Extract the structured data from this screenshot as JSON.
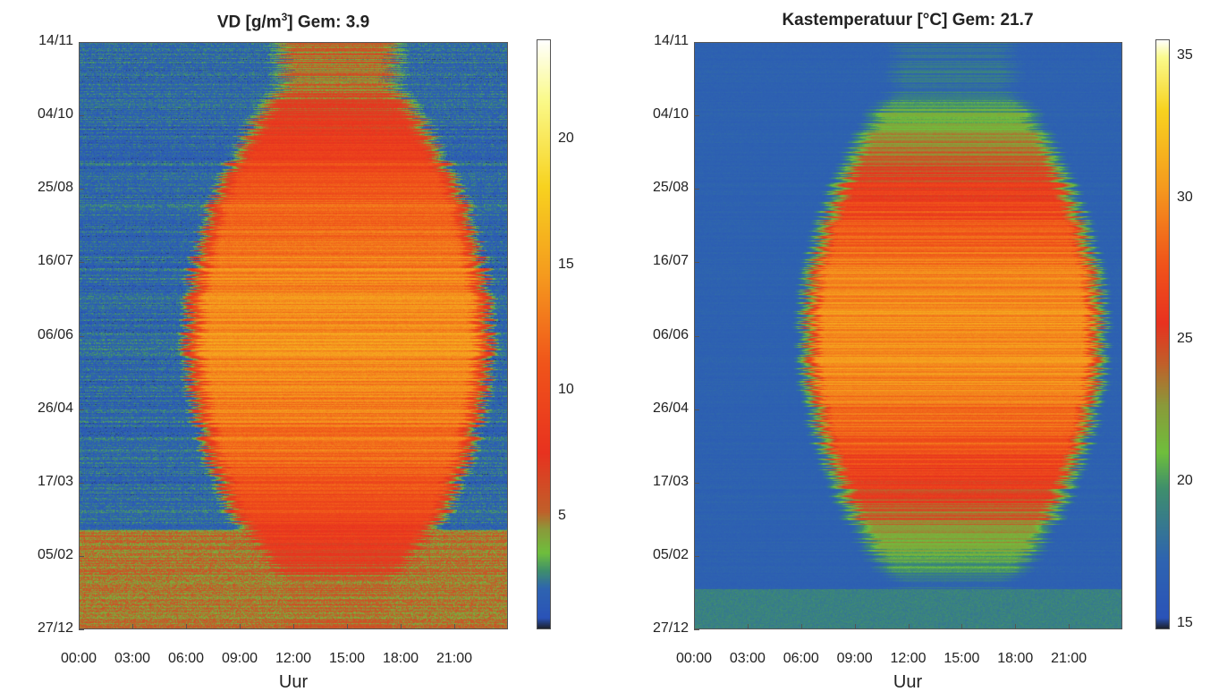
{
  "chart_data": [
    {
      "type": "heatmap",
      "title_prefix": "VD [g/m",
      "title_sup": "3",
      "title_suffix": "] Gem: 3.9",
      "xlabel": "Uur",
      "x_ticks": [
        "00:00",
        "03:00",
        "06:00",
        "09:00",
        "12:00",
        "15:00",
        "18:00",
        "21:00"
      ],
      "y_ticks": [
        "14/11",
        "04/10",
        "25/08",
        "16/07",
        "06/06",
        "26/04",
        "17/03",
        "05/02",
        "27/12"
      ],
      "colorbar_ticks": [
        "5",
        "10",
        "15",
        "20"
      ],
      "colorbar_values": [
        5,
        10,
        15,
        20
      ],
      "clim": [
        0.5,
        24
      ],
      "x_range_hours": [
        0,
        24
      ],
      "y_range": [
        "27/12",
        "14/11"
      ],
      "colormap": [
        "#1b1b1b",
        "#2a53b8",
        "#2e64b0",
        "#3f8f6c",
        "#6fbf3c",
        "#8a9a3a",
        "#c0602a",
        "#e8321f",
        "#f0541a",
        "#f59a1e",
        "#f7d21f",
        "#fafa8c",
        "#ffffff"
      ],
      "colormap_breaks": [
        0,
        0.02,
        0.07,
        0.1,
        0.13,
        0.17,
        0.2,
        0.3,
        0.45,
        0.6,
        0.75,
        0.9,
        1.0
      ],
      "description_values": {
        "night_typical": 2.0,
        "day_summer_peak": 14.0,
        "winter_band": 5.0
      }
    },
    {
      "type": "heatmap",
      "title_prefix": "Kastemperatuur [°C] Gem: 21.7",
      "title_sup": "",
      "title_suffix": "",
      "xlabel": "Uur",
      "x_ticks": [
        "00:00",
        "03:00",
        "06:00",
        "09:00",
        "12:00",
        "15:00",
        "18:00",
        "21:00"
      ],
      "y_ticks": [
        "14/11",
        "04/10",
        "25/08",
        "16/07",
        "06/06",
        "26/04",
        "17/03",
        "05/02",
        "27/12"
      ],
      "colorbar_ticks": [
        "15",
        "20",
        "25",
        "30",
        "35"
      ],
      "colorbar_values": [
        15,
        20,
        25,
        30,
        35
      ],
      "clim": [
        14.8,
        35.6
      ],
      "x_range_hours": [
        0,
        24
      ],
      "y_range": [
        "27/12",
        "14/11"
      ],
      "colormap": [
        "#1b1b1b",
        "#2a53b8",
        "#2e64b0",
        "#3f8f6c",
        "#6fbf3c",
        "#8a9a3a",
        "#c0602a",
        "#e8321f",
        "#f0541a",
        "#f59a1e",
        "#f7d21f",
        "#fafa8c",
        "#ffffff"
      ],
      "colormap_breaks": [
        0,
        0.02,
        0.12,
        0.24,
        0.3,
        0.38,
        0.45,
        0.52,
        0.62,
        0.75,
        0.88,
        0.97,
        1.0
      ],
      "description_values": {
        "night_typical": 17.0,
        "day_summer_peak": 30.0,
        "winter_band": 18.0
      }
    }
  ]
}
